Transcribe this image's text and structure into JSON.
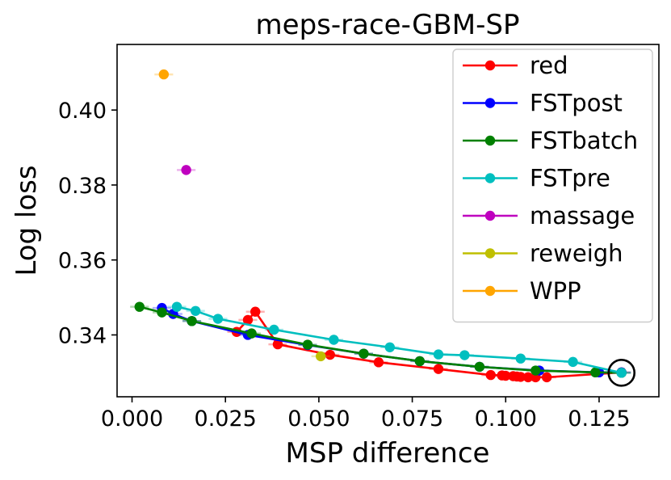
{
  "chart_data": {
    "type": "line",
    "title": "meps-race-GBM-SP",
    "xlabel": "MSP difference",
    "ylabel": "Log loss",
    "xlim": [
      -0.004,
      0.141
    ],
    "ylim": [
      0.3235,
      0.4175
    ],
    "xticks": [
      0.0,
      0.025,
      0.05,
      0.075,
      0.1,
      0.125
    ],
    "xtick_labels": [
      "0.000",
      "0.025",
      "0.050",
      "0.075",
      "0.100",
      "0.125"
    ],
    "yticks": [
      0.34,
      0.36,
      0.38,
      0.4
    ],
    "ytick_labels": [
      "0.34",
      "0.36",
      "0.38",
      "0.40"
    ],
    "legend_position": "top-right",
    "series": [
      {
        "name": "red",
        "color": "#ff0000",
        "x": [
          0.131,
          0.111,
          0.108,
          0.106,
          0.104,
          0.103,
          0.102,
          0.1,
          0.099,
          0.096,
          0.082,
          0.066,
          0.053,
          0.039,
          0.033,
          0.031,
          0.028
        ],
        "y": [
          0.33,
          0.3287,
          0.3287,
          0.3287,
          0.3288,
          0.3289,
          0.329,
          0.3291,
          0.3292,
          0.3293,
          0.3309,
          0.3327,
          0.3347,
          0.3375,
          0.3462,
          0.344,
          0.3408
        ]
      },
      {
        "name": "FSTpost",
        "color": "#0000ff",
        "x": [
          0.131,
          0.125,
          0.109,
          0.093,
          0.077,
          0.062,
          0.047,
          0.031,
          0.016,
          0.011,
          0.008
        ],
        "y": [
          0.33,
          0.33,
          0.3305,
          0.3315,
          0.333,
          0.335,
          0.3373,
          0.34,
          0.3437,
          0.3456,
          0.3472
        ]
      },
      {
        "name": "FSTbatch",
        "color": "#008000",
        "x": [
          0.131,
          0.124,
          0.108,
          0.093,
          0.077,
          0.062,
          0.047,
          0.032,
          0.016,
          0.008,
          0.002
        ],
        "y": [
          0.3299,
          0.33,
          0.3305,
          0.3315,
          0.333,
          0.335,
          0.3374,
          0.3404,
          0.3437,
          0.346,
          0.3475
        ]
      },
      {
        "name": "FSTpre",
        "color": "#00bfbf",
        "x": [
          0.131,
          0.118,
          0.104,
          0.089,
          0.082,
          0.069,
          0.054,
          0.038,
          0.023,
          0.017,
          0.012
        ],
        "y": [
          0.3299,
          0.3328,
          0.3337,
          0.3346,
          0.3348,
          0.3367,
          0.3387,
          0.3414,
          0.3443,
          0.3464,
          0.3475
        ]
      },
      {
        "name": "massage",
        "color": "#bf00bf",
        "x": [
          0.0145
        ],
        "y": [
          0.384
        ]
      },
      {
        "name": "reweigh",
        "color": "#bfbf00",
        "x": [
          0.0505
        ],
        "y": [
          0.3343
        ]
      },
      {
        "name": "WPP",
        "color": "#ffa500",
        "x": [
          0.0085
        ],
        "y": [
          0.4095
        ]
      }
    ],
    "highlight": {
      "x": 0.131,
      "y": 0.3299,
      "label": "circled point"
    }
  }
}
